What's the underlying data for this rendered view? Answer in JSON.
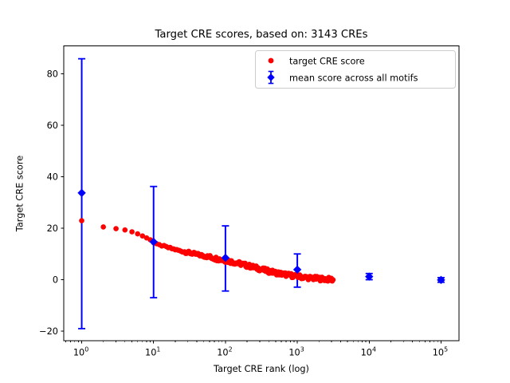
{
  "chart_data": {
    "type": "scatter",
    "title": "Target CRE scores, based on: 3143 CREs",
    "xlabel": "Target CRE rank (log)",
    "ylabel": "Target CRE score",
    "x_scale": "log",
    "xlim_log10": [
      -0.25,
      5.25
    ],
    "ylim": [
      -23.7,
      90.8
    ],
    "x_major_tick_exponents": [
      0,
      1,
      2,
      3,
      4,
      5
    ],
    "y_ticks": [
      -20,
      0,
      20,
      40,
      60,
      80
    ],
    "grid": false,
    "legend_position": "upper right",
    "colors": {
      "red": "#ff0000",
      "blue": "#0000ff",
      "frame": "#000000",
      "legend_border": "#cccccc",
      "background": "#ffffff"
    },
    "series": [
      {
        "name": "target CRE score",
        "kind": "scatter",
        "marker": "circle",
        "color": "#ff0000",
        "n_points": 3143,
        "rank_range": [
          1,
          3143
        ],
        "anchors_rank_score": [
          [
            1,
            22.9
          ],
          [
            2,
            20.5
          ],
          [
            3,
            19.8
          ],
          [
            4,
            19.3
          ],
          [
            5,
            18.6
          ],
          [
            6,
            17.8
          ],
          [
            7,
            17.0
          ],
          [
            8,
            16.2
          ],
          [
            9,
            15.5
          ],
          [
            10,
            14.4
          ],
          [
            12,
            13.6
          ],
          [
            15,
            12.7
          ],
          [
            20,
            11.7
          ],
          [
            25,
            11.0
          ],
          [
            32,
            10.4
          ],
          [
            40,
            9.8
          ],
          [
            50,
            9.2
          ],
          [
            65,
            8.6
          ],
          [
            80,
            8.0
          ],
          [
            100,
            7.5
          ],
          [
            130,
            6.8
          ],
          [
            160,
            6.2
          ],
          [
            200,
            5.5
          ],
          [
            260,
            4.7
          ],
          [
            320,
            4.0
          ],
          [
            400,
            3.3
          ],
          [
            500,
            2.7
          ],
          [
            650,
            2.1
          ],
          [
            800,
            1.7
          ],
          [
            1000,
            1.3
          ],
          [
            1300,
            0.9
          ],
          [
            1600,
            0.6
          ],
          [
            2000,
            0.4
          ],
          [
            2500,
            0.2
          ],
          [
            3143,
            0.0
          ]
        ]
      },
      {
        "name": "mean score across all motifs",
        "kind": "errorbar",
        "marker": "diamond",
        "color": "#0000ff",
        "points": [
          {
            "rank": 1,
            "mean": 33.7,
            "lo": -19.0,
            "hi": 85.8
          },
          {
            "rank": 10,
            "mean": 14.7,
            "lo": -7.0,
            "hi": 36.2
          },
          {
            "rank": 100,
            "mean": 8.5,
            "lo": -4.4,
            "hi": 20.9
          },
          {
            "rank": 1000,
            "mean": 3.9,
            "lo": -2.9,
            "hi": 10.0
          },
          {
            "rank": 10000,
            "mean": 1.2,
            "lo": 0.0,
            "hi": 2.4
          },
          {
            "rank": 100000,
            "mean": -0.1,
            "lo": -1.0,
            "hi": 0.8
          }
        ]
      }
    ]
  }
}
